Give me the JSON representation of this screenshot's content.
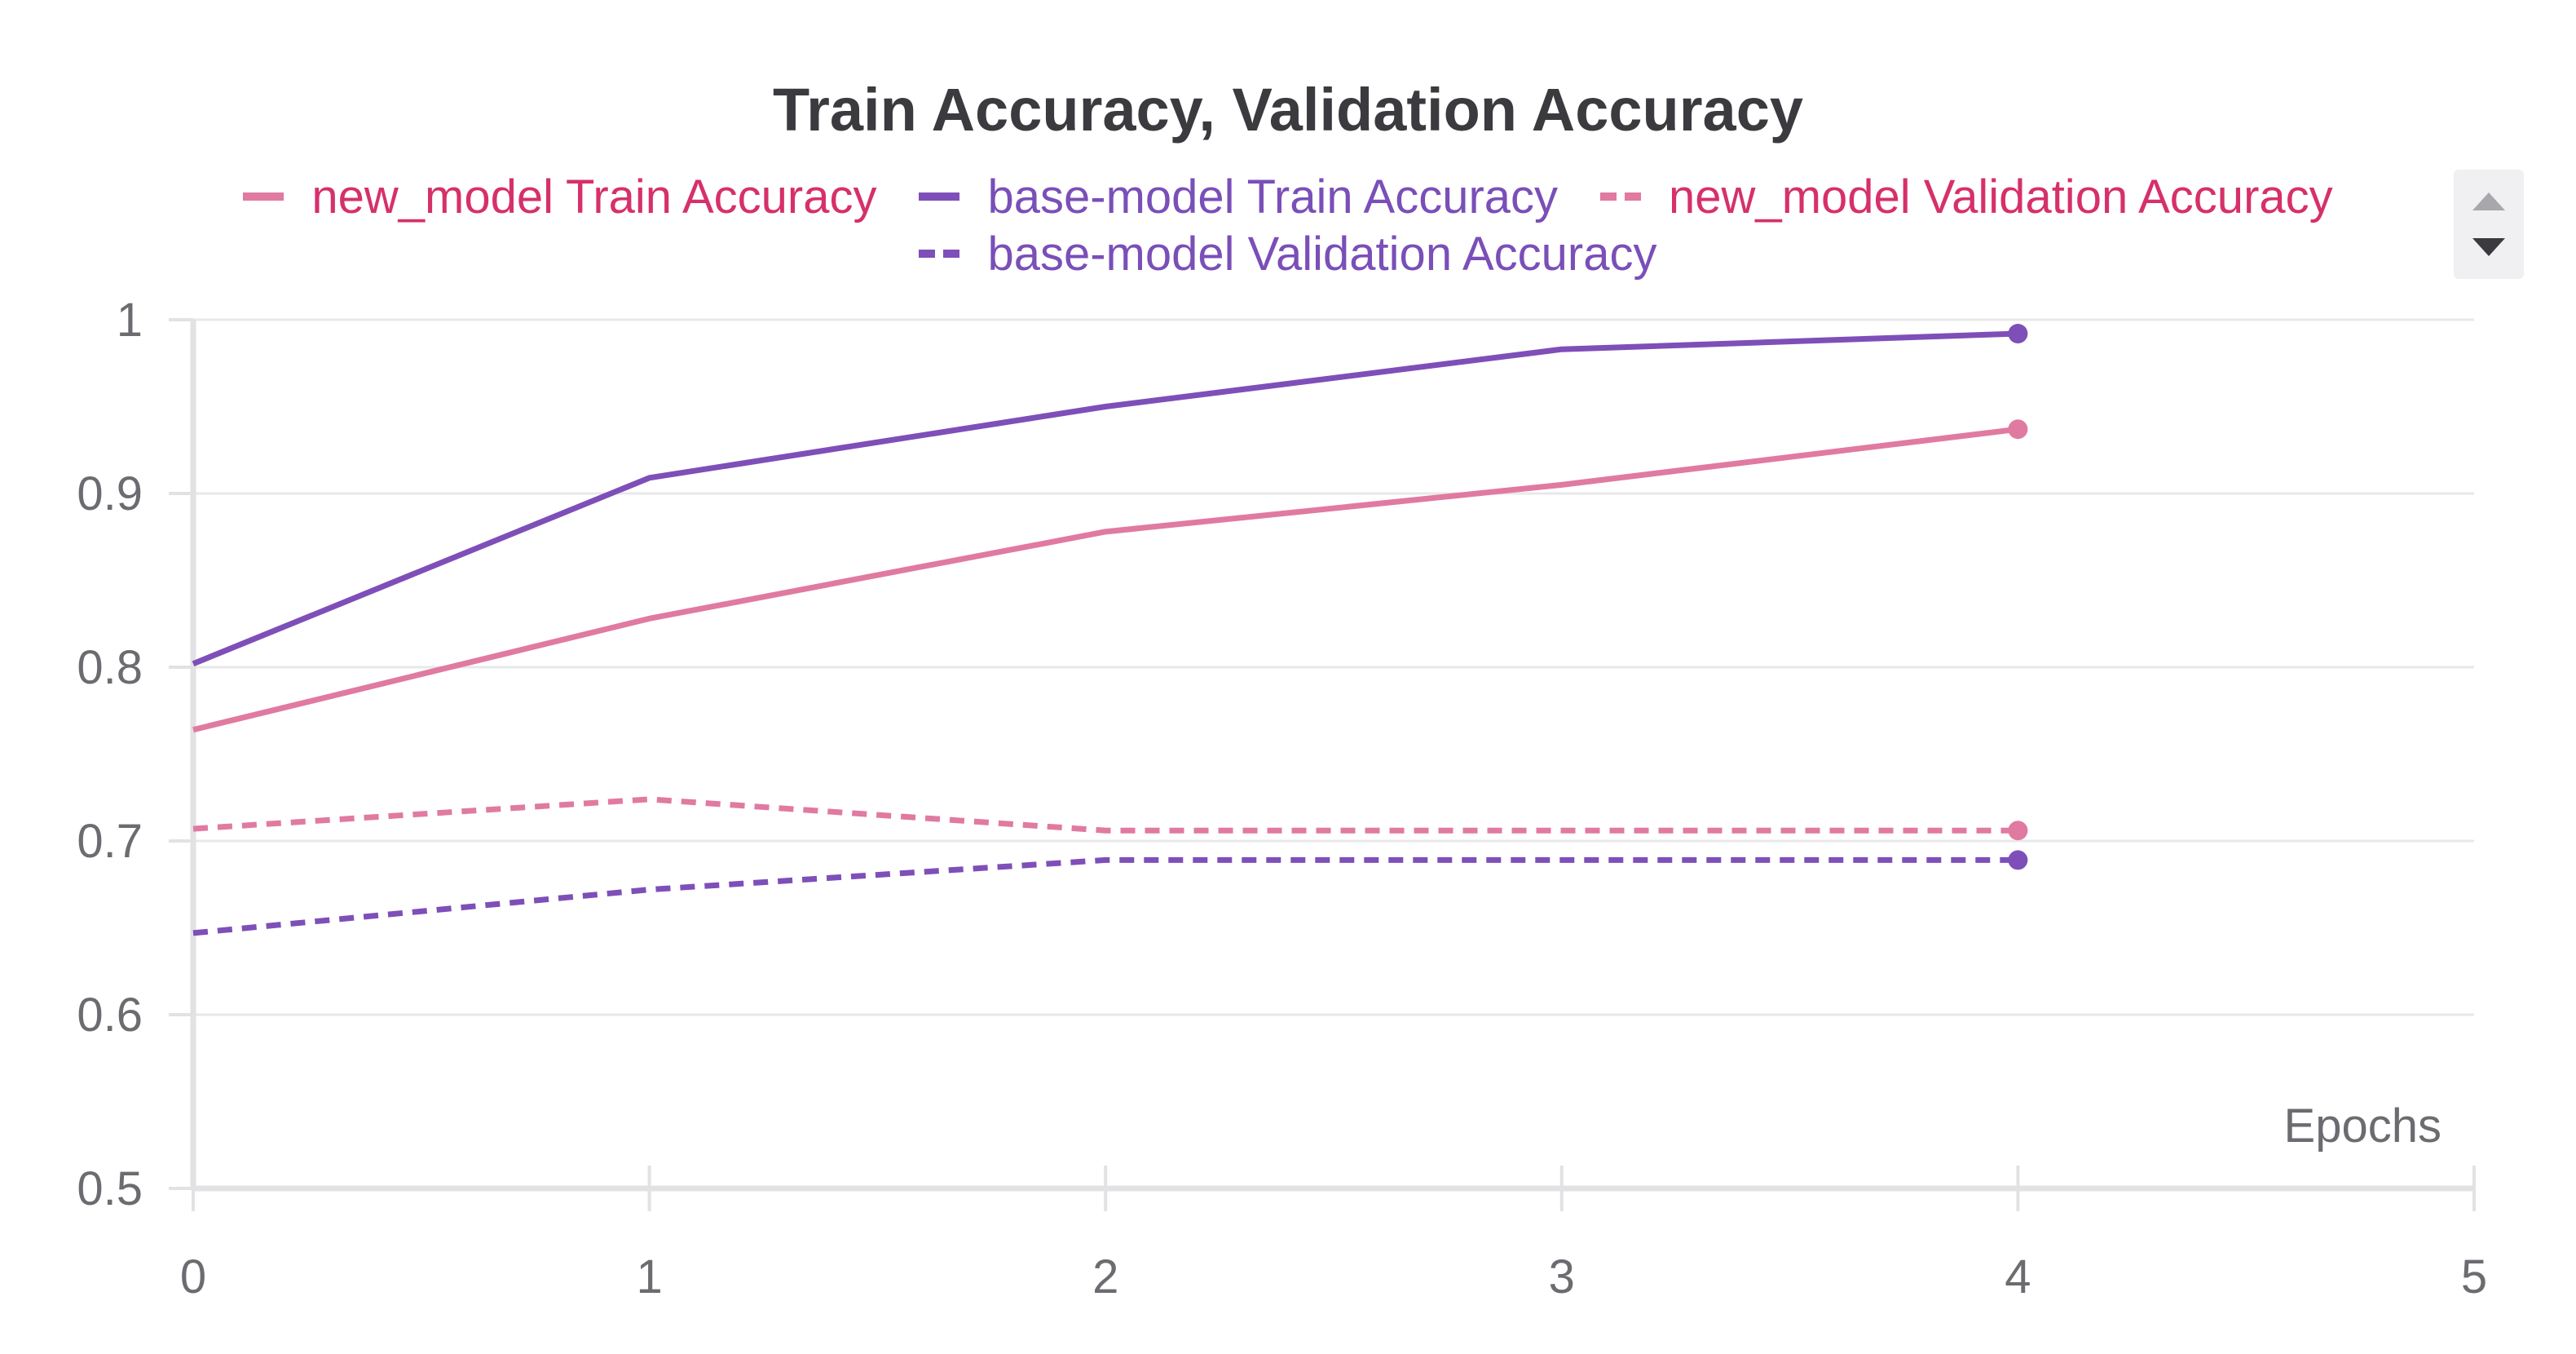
{
  "chart_data": {
    "type": "line",
    "title": "Train Accuracy, Validation Accuracy",
    "xlabel": "Epochs",
    "ylabel": "",
    "xlim": [
      0,
      5
    ],
    "ylim": [
      0.5,
      1
    ],
    "x_ticks": [
      "0",
      "1",
      "2",
      "3",
      "4",
      "5"
    ],
    "y_ticks": [
      "0.5",
      "0.6",
      "0.7",
      "0.8",
      "0.9",
      "1"
    ],
    "grid": true,
    "legend_position": "top-center",
    "x": [
      0,
      1,
      2,
      3,
      4
    ],
    "series": [
      {
        "name": "new_model Train Accuracy",
        "values": [
          0.764,
          0.828,
          0.878,
          0.905,
          0.937
        ],
        "color": "#e07aa0",
        "dash": "solid",
        "label_color": "#d6306b"
      },
      {
        "name": "base-model Train Accuracy",
        "values": [
          0.802,
          0.909,
          0.95,
          0.983,
          0.992
        ],
        "color": "#7e4fb8",
        "dash": "solid",
        "label_color": "#7a4fb8"
      },
      {
        "name": "new_model Validation Accuracy",
        "values": [
          0.707,
          0.724,
          0.706,
          0.706,
          0.706
        ],
        "color": "#e07aa0",
        "dash": "dashed",
        "label_color": "#d6306b"
      },
      {
        "name": "base-model Validation Accuracy",
        "values": [
          0.647,
          0.672,
          0.689,
          0.689,
          0.689
        ],
        "color": "#7e4fb8",
        "dash": "dashed",
        "label_color": "#7a4fb8"
      }
    ]
  },
  "legend": {
    "scroll_up_icon": "triangle-up-icon",
    "scroll_down_icon": "triangle-down-icon"
  }
}
